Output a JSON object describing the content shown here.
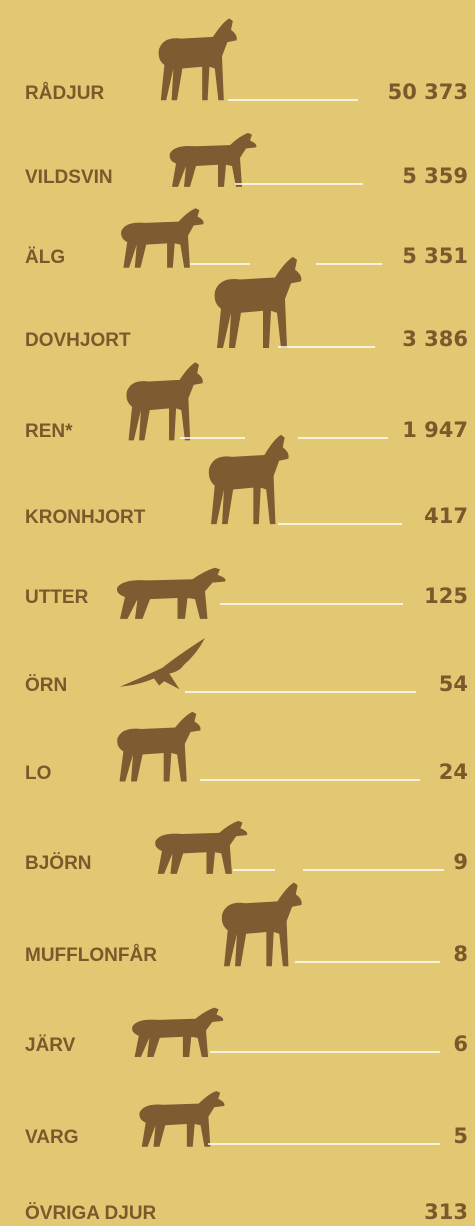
{
  "items": [
    {
      "label": "RÅDJUR",
      "value": "50 373"
    },
    {
      "label": "VILDSVIN",
      "value": "5 359"
    },
    {
      "label": "ÄLG",
      "value": "5 351"
    },
    {
      "label": "DOVHJORT",
      "value": "3 386"
    },
    {
      "label": "REN*",
      "value": "1 947"
    },
    {
      "label": "KRONHJORT",
      "value": "417"
    },
    {
      "label": "UTTER",
      "value": "125"
    },
    {
      "label": "ÖRN",
      "value": "54"
    },
    {
      "label": "LO",
      "value": "24"
    },
    {
      "label": "BJÖRN",
      "value": "9"
    },
    {
      "label": "MUFFLONFÅR",
      "value": "8"
    },
    {
      "label": "JÄRV",
      "value": "6"
    },
    {
      "label": "VARG",
      "value": "5"
    },
    {
      "label": "ÖVRIGA DJUR",
      "value": "313"
    }
  ]
}
